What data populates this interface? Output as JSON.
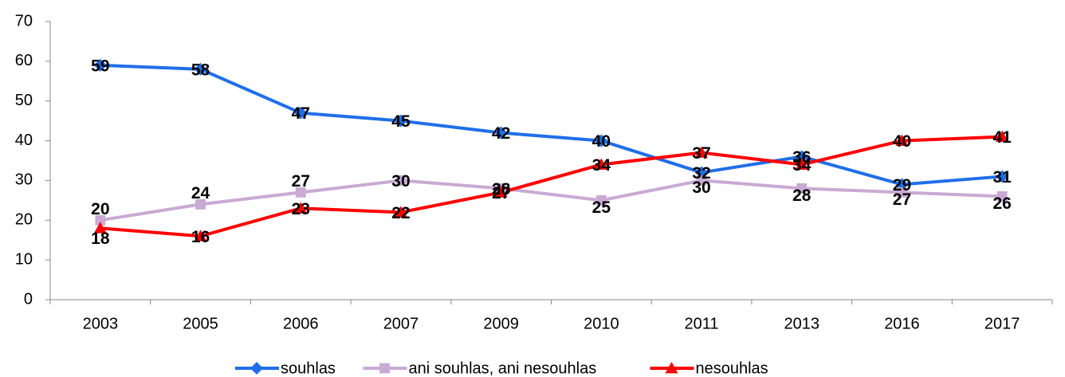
{
  "chart_data": {
    "type": "line",
    "categories": [
      "2003",
      "2005",
      "2006",
      "2007",
      "2009",
      "2010",
      "2011",
      "2013",
      "2016",
      "2017"
    ],
    "series": [
      {
        "name": "souhlas",
        "color": "#1f6fe8",
        "marker": "diamond",
        "values": [
          59,
          58,
          47,
          45,
          42,
          40,
          32,
          36,
          29,
          31
        ]
      },
      {
        "name": "ani souhlas, ani nesouhlas",
        "color": "#c9aad3",
        "marker": "square",
        "values": [
          20,
          24,
          27,
          30,
          28,
          25,
          30,
          28,
          27,
          26
        ]
      },
      {
        "name": "nesouhlas",
        "color": "#ff0000",
        "marker": "triangle",
        "values": [
          18,
          16,
          23,
          22,
          27,
          34,
          37,
          34,
          40,
          41
        ]
      }
    ],
    "ylim": [
      0,
      70
    ],
    "yticks": [
      0,
      10,
      20,
      30,
      40,
      50,
      60,
      70
    ],
    "grid": false,
    "legend": "bottom"
  }
}
